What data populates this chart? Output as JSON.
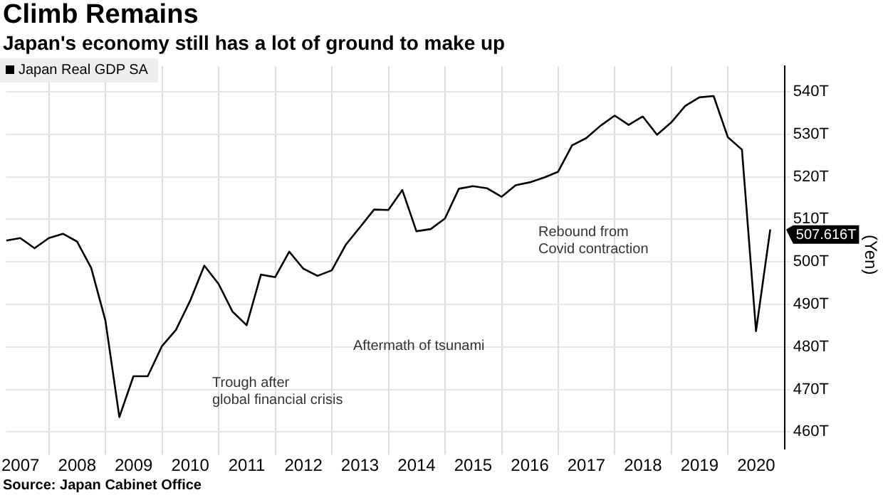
{
  "chart_data": {
    "type": "line",
    "title": "Climb Remains",
    "subtitle": "Japan's economy still has a lot of ground to make up",
    "ylabel": "(Yen)",
    "x": [
      "2007-03-31",
      "2007-06-30",
      "2007-09-30",
      "2007-12-31",
      "2008-03-31",
      "2008-06-30",
      "2008-09-30",
      "2008-12-31",
      "2009-03-31",
      "2009-06-30",
      "2009-09-30",
      "2009-12-31",
      "2010-03-31",
      "2010-06-30",
      "2010-09-30",
      "2010-12-31",
      "2011-03-31",
      "2011-06-30",
      "2011-09-30",
      "2011-12-31",
      "2012-03-31",
      "2012-06-30",
      "2012-09-30",
      "2012-12-31",
      "2013-03-31",
      "2013-06-30",
      "2013-09-30",
      "2013-12-31",
      "2014-03-31",
      "2014-06-30",
      "2014-09-30",
      "2014-12-31",
      "2015-03-31",
      "2015-06-30",
      "2015-09-30",
      "2015-12-31",
      "2016-03-31",
      "2016-06-30",
      "2016-09-30",
      "2016-12-31",
      "2017-03-31",
      "2017-06-30",
      "2017-09-30",
      "2017-12-31",
      "2018-03-31",
      "2018-06-30",
      "2018-09-30",
      "2018-12-31",
      "2019-03-31",
      "2019-06-30",
      "2019-09-30",
      "2019-12-31",
      "2020-03-31",
      "2020-06-30",
      "2020-09-30"
    ],
    "series": [
      {
        "name": "Japan Real GDP SA",
        "color": "#000000",
        "values": [
          505.0,
          505.6,
          503.2,
          505.6,
          506.6,
          504.8,
          498.6,
          486.2,
          463.5,
          473.1,
          473.1,
          480.2,
          484.0,
          490.8,
          499.1,
          494.8,
          488.3,
          485.1,
          497.0,
          496.4,
          502.4,
          498.4,
          496.7,
          498.0,
          504.0,
          508.1,
          512.3,
          512.2,
          516.9,
          507.2,
          507.7,
          510.2,
          517.2,
          517.8,
          517.3,
          515.3,
          518.0,
          518.7,
          519.8,
          521.2,
          527.4,
          529.1,
          532.0,
          534.4,
          532.2,
          534.2,
          529.9,
          532.8,
          536.7,
          538.7,
          539.0,
          529.3,
          526.4,
          483.7,
          507.616
        ]
      }
    ],
    "xlim": [
      "2007-03-31",
      "2021-01-01"
    ],
    "xticks": [
      {
        "value": "2007-07-01",
        "label": "2007"
      },
      {
        "value": "2008-01-01",
        "label": null
      },
      {
        "value": "2008-07-01",
        "label": "2008"
      },
      {
        "value": "2009-01-01",
        "label": null
      },
      {
        "value": "2009-07-01",
        "label": "2009"
      },
      {
        "value": "2010-01-01",
        "label": null
      },
      {
        "value": "2010-07-01",
        "label": "2010"
      },
      {
        "value": "2011-01-01",
        "label": null
      },
      {
        "value": "2011-07-01",
        "label": "2011"
      },
      {
        "value": "2012-01-01",
        "label": null
      },
      {
        "value": "2012-07-01",
        "label": "2012"
      },
      {
        "value": "2013-01-01",
        "label": null
      },
      {
        "value": "2013-07-01",
        "label": "2013"
      },
      {
        "value": "2014-01-01",
        "label": null
      },
      {
        "value": "2014-07-01",
        "label": "2014"
      },
      {
        "value": "2015-01-01",
        "label": null
      },
      {
        "value": "2015-07-01",
        "label": "2015"
      },
      {
        "value": "2016-01-01",
        "label": null
      },
      {
        "value": "2016-07-01",
        "label": "2016"
      },
      {
        "value": "2017-01-01",
        "label": null
      },
      {
        "value": "2017-07-01",
        "label": "2017"
      },
      {
        "value": "2018-01-01",
        "label": null
      },
      {
        "value": "2018-07-01",
        "label": "2018"
      },
      {
        "value": "2019-01-01",
        "label": null
      },
      {
        "value": "2019-07-01",
        "label": "2019"
      },
      {
        "value": "2020-01-01",
        "label": null
      },
      {
        "value": "2020-07-01",
        "label": "2020"
      }
    ],
    "ylim": [
      456,
      546
    ],
    "yticks": [
      {
        "value": 460,
        "label": "460T"
      },
      {
        "value": 470,
        "label": "470T"
      },
      {
        "value": 480,
        "label": "480T"
      },
      {
        "value": 490,
        "label": "490T"
      },
      {
        "value": 500,
        "label": "500T"
      },
      {
        "value": 510,
        "label": "510T"
      },
      {
        "value": 520,
        "label": "520T"
      },
      {
        "value": 530,
        "label": "530T"
      },
      {
        "value": 540,
        "label": "540T"
      }
    ],
    "grid": true,
    "legend": "top left",
    "marker": "none",
    "line_style": "solid",
    "annotations": [
      {
        "text": "507.616T",
        "x": "2020-09-30",
        "y": 507.616
      },
      "Trough after\nglobal financial crisis",
      "Aftermath of tsunami",
      "Rebound from\nCovid contraction",
      "Source: Japan Cabinet Office"
    ]
  }
}
